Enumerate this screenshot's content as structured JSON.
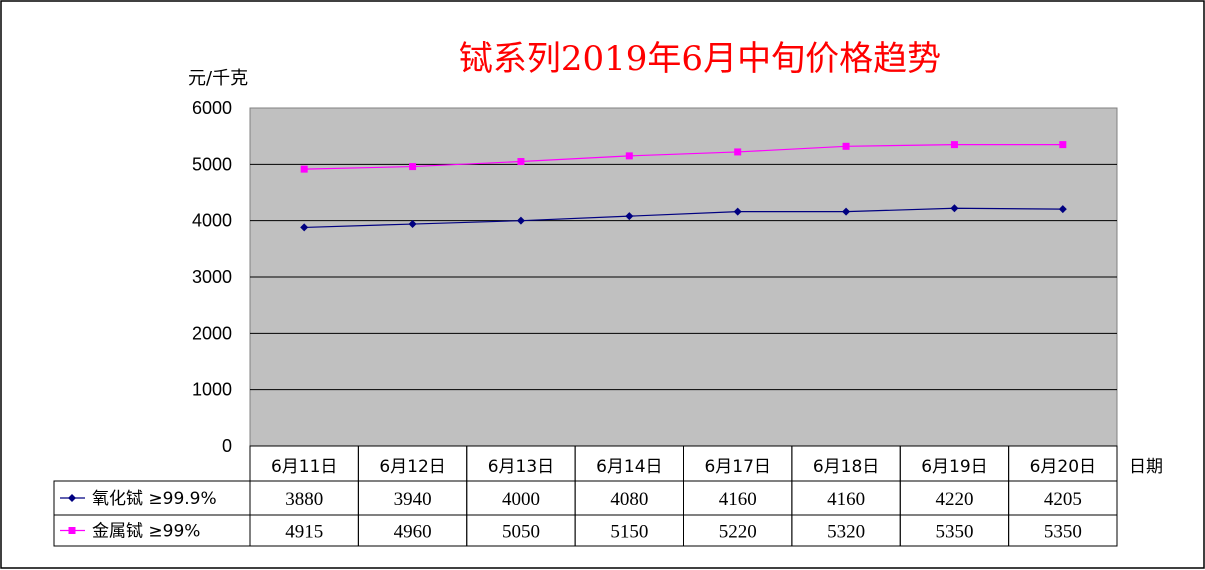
{
  "chart_data": {
    "type": "line",
    "title": "铽系列2019年6月中旬价格趋势",
    "ylabel": "元/千克",
    "xlabel": "日期",
    "categories": [
      "6月11日",
      "6月12日",
      "6月13日",
      "6月14日",
      "6月17日",
      "6月18日",
      "6月19日",
      "6月20日"
    ],
    "y_ticks": [
      "0",
      "1000",
      "2000",
      "3000",
      "4000",
      "5000",
      "6000"
    ],
    "ylim": [
      0,
      6000
    ],
    "grid": true,
    "legend_position": "data table below plot",
    "series": [
      {
        "name": "氧化铽  ≥99.9%",
        "values": [
          3880,
          3940,
          4000,
          4080,
          4160,
          4160,
          4220,
          4205
        ],
        "value_labels": [
          "3880",
          "3940",
          "4000",
          "4080",
          "4160",
          "4160",
          "4220",
          "4205"
        ],
        "color": "#000080",
        "marker": "diamond"
      },
      {
        "name": "金属铽  ≥99%",
        "values": [
          4915,
          4960,
          5050,
          5150,
          5220,
          5320,
          5350,
          5350
        ],
        "value_labels": [
          "4915",
          "4960",
          "5050",
          "5150",
          "5220",
          "5320",
          "5350",
          "5350"
        ],
        "color": "#ff00ff",
        "marker": "square"
      }
    ]
  }
}
